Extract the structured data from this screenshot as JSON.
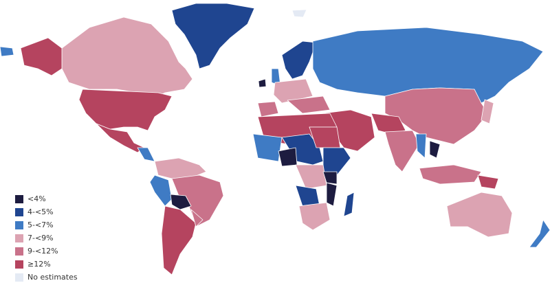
{
  "legend": {
    "items": [
      {
        "label": "<4%",
        "color": "#1d1c40"
      },
      {
        "label": "4-<5%",
        "color": "#1f4590"
      },
      {
        "label": "5-<7%",
        "color": "#3f7bc4"
      },
      {
        "label": "7-<9%",
        "color": "#dca3b2"
      },
      {
        "label": "9-<12%",
        "color": "#c9728a"
      },
      {
        "label": "≥12%",
        "color": "#b5445f"
      },
      {
        "label": "No estimates",
        "color": "#e4eaf4"
      }
    ]
  }
}
